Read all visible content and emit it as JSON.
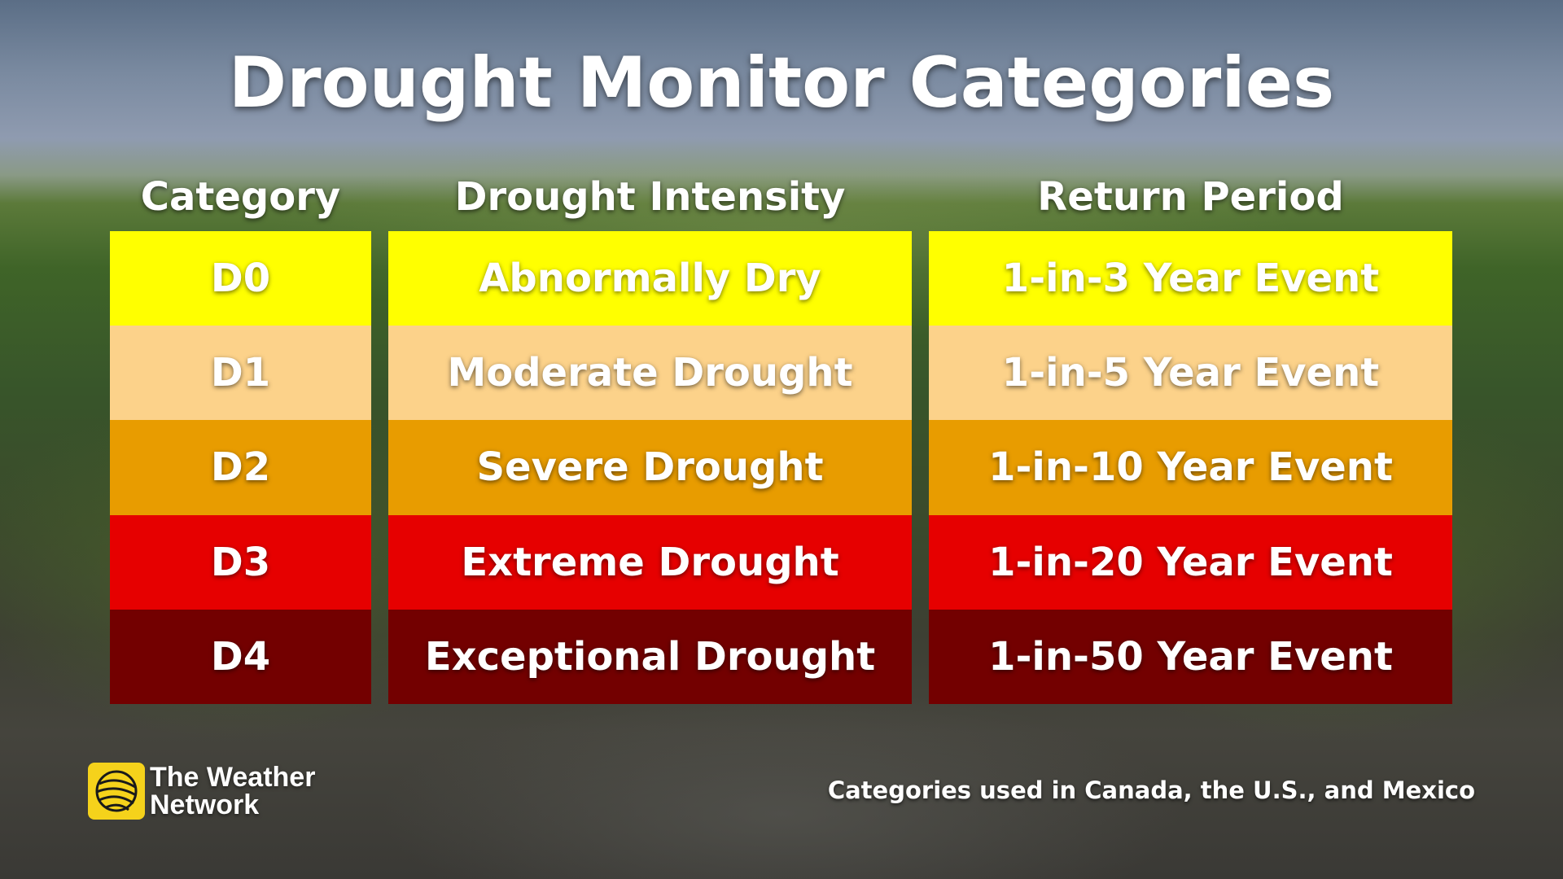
{
  "title": "Drought Monitor Categories",
  "headers": {
    "category": "Category",
    "intensity": "Drought Intensity",
    "return_period": "Return Period"
  },
  "rows": [
    {
      "category": "D0",
      "intensity": "Abnormally Dry",
      "return_period": "1-in-3 Year Event",
      "color": "#ffff00"
    },
    {
      "category": "D1",
      "intensity": "Moderate Drought",
      "return_period": "1-in-5 Year Event",
      "color": "#fcd28a"
    },
    {
      "category": "D2",
      "intensity": "Severe Drought",
      "return_period": "1-in-10 Year Event",
      "color": "#e89c00"
    },
    {
      "category": "D3",
      "intensity": "Extreme Drought",
      "return_period": "1-in-20 Year Event",
      "color": "#e60000"
    },
    {
      "category": "D4",
      "intensity": "Exceptional Drought",
      "return_period": "1-in-50 Year Event",
      "color": "#730000"
    }
  ],
  "brand": {
    "line1": "The Weather",
    "line2": "Network",
    "logo_color": "#f5d21b",
    "logo_icon": "globe-icon"
  },
  "footnote": "Categories used in Canada, the U.S., and Mexico"
}
